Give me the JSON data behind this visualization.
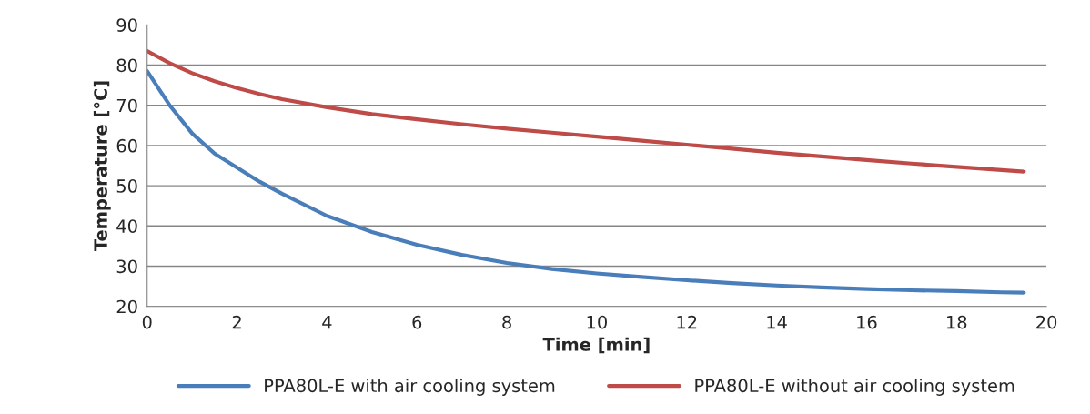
{
  "chart_data": {
    "type": "line",
    "xlabel": "Time [min]",
    "ylabel": "Temperature [°C]",
    "xlim": [
      0,
      20
    ],
    "xticks": [
      0,
      2,
      4,
      6,
      8,
      10,
      12,
      14,
      16,
      18,
      20
    ],
    "ylim": [
      20,
      90
    ],
    "yticks": [
      20,
      30,
      40,
      50,
      60,
      70,
      80,
      90
    ],
    "grid": "y",
    "legend": "bottom",
    "marker": "none",
    "line_style": "solid",
    "x": [
      0,
      0.5,
      1,
      1.5,
      2,
      2.5,
      3,
      4,
      5,
      6,
      7,
      8,
      9,
      10,
      11,
      12,
      13,
      14,
      15,
      16,
      17,
      18,
      19,
      19.5
    ],
    "series": [
      {
        "name": "PPA80L-E with air cooling system",
        "color": "#4a7ebb",
        "values": [
          78.5,
          70,
          63,
          58,
          54.5,
          51,
          48,
          42.5,
          38.5,
          35.3,
          32.8,
          30.8,
          29.3,
          28.2,
          27.3,
          26.5,
          25.8,
          25.2,
          24.7,
          24.3,
          24,
          23.8,
          23.5,
          23.4
        ]
      },
      {
        "name": "PPA80L-E without air cooling system",
        "color": "#be4b48",
        "values": [
          83.5,
          80.5,
          78,
          76,
          74.3,
          72.8,
          71.5,
          69.5,
          67.8,
          66.5,
          65.3,
          64.2,
          63.2,
          62.2,
          61.2,
          60.2,
          59.2,
          58.2,
          57.3,
          56.4,
          55.5,
          54.7,
          53.9,
          53.5
        ]
      }
    ]
  }
}
